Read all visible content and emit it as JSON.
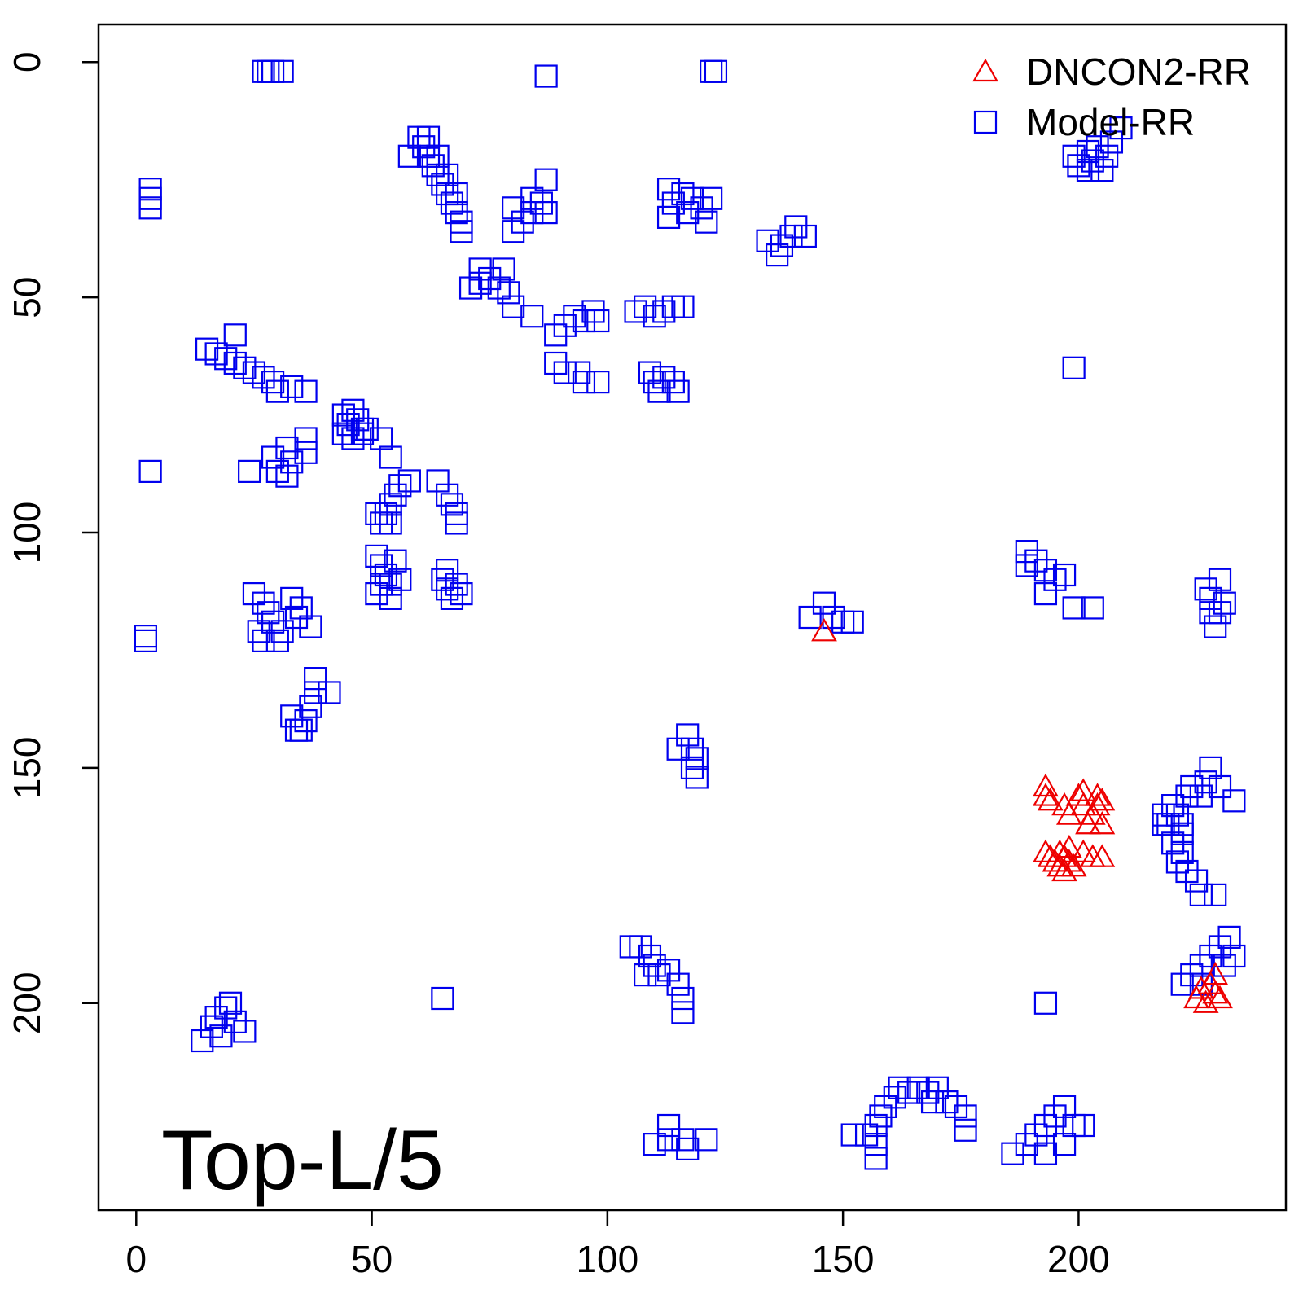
{
  "chart_data": {
    "type": "scatter",
    "title": "",
    "xlabel": "",
    "ylabel": "",
    "xlim": [
      -8,
      244
    ],
    "ylim": [
      -8,
      244
    ],
    "y_inverted": true,
    "x_ticks": [
      "0",
      "50",
      "100",
      "150",
      "200"
    ],
    "y_ticks": [
      "0",
      "50",
      "100",
      "150",
      "200"
    ],
    "grid": false,
    "legend_position": "top-right",
    "annotation": "Top-L/5",
    "colors": {
      "DNCON2-RR": "#ee0000",
      "Model-RR": "#0000ee"
    },
    "series": [
      {
        "name": "DNCON2-RR",
        "marker": "triangle",
        "points": [
          [
            146,
            121
          ],
          [
            193,
            154
          ],
          [
            193,
            156
          ],
          [
            194,
            157
          ],
          [
            197,
            158
          ],
          [
            198,
            160
          ],
          [
            200,
            156
          ],
          [
            201,
            155
          ],
          [
            201,
            158
          ],
          [
            202,
            162
          ],
          [
            203,
            160
          ],
          [
            204,
            156
          ],
          [
            204,
            158
          ],
          [
            205,
            157
          ],
          [
            205,
            162
          ],
          [
            193,
            168
          ],
          [
            194,
            169
          ],
          [
            195,
            170
          ],
          [
            196,
            168
          ],
          [
            196,
            171
          ],
          [
            197,
            169
          ],
          [
            197,
            172
          ],
          [
            198,
            167
          ],
          [
            198,
            170
          ],
          [
            199,
            171
          ],
          [
            201,
            168
          ],
          [
            203,
            169
          ],
          [
            205,
            169
          ],
          [
            225,
            199
          ],
          [
            226,
            197
          ],
          [
            227,
            200
          ],
          [
            228,
            196
          ],
          [
            229,
            194
          ],
          [
            229,
            198
          ],
          [
            230,
            199
          ]
        ]
      },
      {
        "name": "Model-RR",
        "marker": "square",
        "points": [
          [
            3,
            27
          ],
          [
            3,
            29
          ],
          [
            3,
            31
          ],
          [
            3,
            87
          ],
          [
            2,
            122
          ],
          [
            2,
            123
          ],
          [
            27,
            2
          ],
          [
            28,
            2
          ],
          [
            29,
            2
          ],
          [
            31,
            2
          ],
          [
            87,
            3
          ],
          [
            122,
            2
          ],
          [
            123,
            2
          ],
          [
            60,
            16
          ],
          [
            61,
            18
          ],
          [
            62,
            20
          ],
          [
            63,
            22
          ],
          [
            64,
            24
          ],
          [
            65,
            26
          ],
          [
            66,
            28
          ],
          [
            67,
            30
          ],
          [
            68,
            32
          ],
          [
            69,
            34
          ],
          [
            58,
            20
          ],
          [
            62,
            16
          ],
          [
            64,
            20
          ],
          [
            66,
            24
          ],
          [
            68,
            28
          ],
          [
            69,
            36
          ],
          [
            80,
            36
          ],
          [
            82,
            34
          ],
          [
            84,
            32
          ],
          [
            86,
            30
          ],
          [
            87,
            25
          ],
          [
            87,
            32
          ],
          [
            80,
            31
          ],
          [
            84,
            29
          ],
          [
            113,
            27
          ],
          [
            114,
            30
          ],
          [
            116,
            28
          ],
          [
            118,
            29
          ],
          [
            120,
            31
          ],
          [
            122,
            29
          ],
          [
            113,
            33
          ],
          [
            117,
            32
          ],
          [
            121,
            34
          ],
          [
            134,
            38
          ],
          [
            136,
            41
          ],
          [
            137,
            39
          ],
          [
            139,
            37
          ],
          [
            140,
            35
          ],
          [
            142,
            37
          ],
          [
            71,
            48
          ],
          [
            73,
            47
          ],
          [
            75,
            46
          ],
          [
            77,
            48
          ],
          [
            79,
            49
          ],
          [
            80,
            52
          ],
          [
            84,
            54
          ],
          [
            73,
            44
          ],
          [
            78,
            44
          ],
          [
            89,
            58
          ],
          [
            91,
            56
          ],
          [
            93,
            54
          ],
          [
            95,
            55
          ],
          [
            97,
            53
          ],
          [
            98,
            55
          ],
          [
            106,
            53
          ],
          [
            108,
            52
          ],
          [
            110,
            54
          ],
          [
            112,
            53
          ],
          [
            114,
            52
          ],
          [
            116,
            52
          ],
          [
            89,
            64
          ],
          [
            91,
            66
          ],
          [
            94,
            66
          ],
          [
            95,
            68
          ],
          [
            98,
            68
          ],
          [
            109,
            66
          ],
          [
            110,
            68
          ],
          [
            112,
            67
          ],
          [
            114,
            68
          ],
          [
            115,
            70
          ],
          [
            111,
            70
          ],
          [
            15,
            61
          ],
          [
            17,
            62
          ],
          [
            19,
            63
          ],
          [
            21,
            64
          ],
          [
            21,
            58
          ],
          [
            23,
            65
          ],
          [
            25,
            66
          ],
          [
            27,
            67
          ],
          [
            29,
            68
          ],
          [
            30,
            70
          ],
          [
            33,
            69
          ],
          [
            36,
            70
          ],
          [
            44,
            75
          ],
          [
            45,
            77
          ],
          [
            46,
            74
          ],
          [
            47,
            76
          ],
          [
            48,
            78
          ],
          [
            46,
            80
          ],
          [
            44,
            79
          ],
          [
            48,
            79
          ],
          [
            49,
            78
          ],
          [
            52,
            80
          ],
          [
            54,
            84
          ],
          [
            24,
            87
          ],
          [
            29,
            84
          ],
          [
            30,
            87
          ],
          [
            32,
            82
          ],
          [
            33,
            85
          ],
          [
            36,
            83
          ],
          [
            36,
            80
          ],
          [
            32,
            88
          ],
          [
            51,
            96
          ],
          [
            52,
            98
          ],
          [
            53,
            96
          ],
          [
            54,
            94
          ],
          [
            55,
            92
          ],
          [
            56,
            90
          ],
          [
            58,
            89
          ],
          [
            54,
            98
          ],
          [
            64,
            89
          ],
          [
            66,
            92
          ],
          [
            68,
            96
          ],
          [
            68,
            98
          ],
          [
            67,
            94
          ],
          [
            51,
            105
          ],
          [
            52,
            107
          ],
          [
            53,
            109
          ],
          [
            54,
            111
          ],
          [
            51,
            113
          ],
          [
            55,
            106
          ],
          [
            56,
            110
          ],
          [
            52,
            111
          ],
          [
            54,
            114
          ],
          [
            65,
            110
          ],
          [
            66,
            112
          ],
          [
            67,
            114
          ],
          [
            68,
            111
          ],
          [
            69,
            113
          ],
          [
            66,
            108
          ],
          [
            25,
            113
          ],
          [
            27,
            115
          ],
          [
            28,
            117
          ],
          [
            29,
            119
          ],
          [
            31,
            121
          ],
          [
            33,
            114
          ],
          [
            35,
            116
          ],
          [
            37,
            120
          ],
          [
            26,
            121
          ],
          [
            30,
            123
          ],
          [
            34,
            118
          ],
          [
            27,
            123
          ],
          [
            33,
            139
          ],
          [
            34,
            142
          ],
          [
            36,
            140
          ],
          [
            37,
            137
          ],
          [
            38,
            134
          ],
          [
            38,
            131
          ],
          [
            41,
            134
          ],
          [
            35,
            142
          ],
          [
            146,
            115
          ],
          [
            148,
            118
          ],
          [
            150,
            119
          ],
          [
            143,
            118
          ],
          [
            152,
            119
          ],
          [
            189,
            104
          ],
          [
            189,
            107
          ],
          [
            191,
            106
          ],
          [
            193,
            108
          ],
          [
            195,
            110
          ],
          [
            197,
            109
          ],
          [
            193,
            113
          ],
          [
            199,
            116
          ],
          [
            203,
            116
          ],
          [
            227,
            112
          ],
          [
            228,
            114
          ],
          [
            230,
            110
          ],
          [
            230,
            117
          ],
          [
            231,
            115
          ],
          [
            228,
            117
          ],
          [
            229,
            120
          ],
          [
            199,
            65
          ],
          [
            199,
            20
          ],
          [
            200,
            22
          ],
          [
            202,
            19
          ],
          [
            203,
            21
          ],
          [
            204,
            18
          ],
          [
            205,
            23
          ],
          [
            206,
            20
          ],
          [
            207,
            17
          ],
          [
            209,
            14
          ],
          [
            202,
            23
          ],
          [
            117,
            143
          ],
          [
            118,
            146
          ],
          [
            118,
            150
          ],
          [
            119,
            148
          ],
          [
            115,
            146
          ],
          [
            119,
            152
          ],
          [
            193,
            200
          ],
          [
            107,
            188
          ],
          [
            109,
            190
          ],
          [
            110,
            192
          ],
          [
            111,
            194
          ],
          [
            113,
            193
          ],
          [
            115,
            196
          ],
          [
            116,
            199
          ],
          [
            116,
            202
          ],
          [
            105,
            188
          ],
          [
            108,
            194
          ],
          [
            65,
            199
          ],
          [
            14,
            208
          ],
          [
            16,
            205
          ],
          [
            17,
            203
          ],
          [
            19,
            201
          ],
          [
            21,
            204
          ],
          [
            23,
            206
          ],
          [
            20,
            200
          ],
          [
            18,
            207
          ],
          [
            110,
            230
          ],
          [
            113,
            229
          ],
          [
            116,
            229
          ],
          [
            117,
            231
          ],
          [
            121,
            229
          ],
          [
            113,
            226
          ],
          [
            155,
            228
          ],
          [
            157,
            226
          ],
          [
            158,
            224
          ],
          [
            159,
            222
          ],
          [
            161,
            220
          ],
          [
            162,
            218
          ],
          [
            164,
            219
          ],
          [
            166,
            218
          ],
          [
            168,
            219
          ],
          [
            170,
            218
          ],
          [
            172,
            221
          ],
          [
            174,
            222
          ],
          [
            176,
            224
          ],
          [
            176,
            227
          ],
          [
            152,
            228
          ],
          [
            157,
            230
          ],
          [
            157,
            233
          ],
          [
            169,
            221
          ],
          [
            186,
            232
          ],
          [
            189,
            230
          ],
          [
            191,
            228
          ],
          [
            193,
            226
          ],
          [
            195,
            224
          ],
          [
            197,
            222
          ],
          [
            199,
            226
          ],
          [
            201,
            226
          ],
          [
            193,
            232
          ],
          [
            197,
            230
          ]
        ],
        "extra_points": [
          [
            218,
            160
          ],
          [
            219,
            162
          ],
          [
            220,
            158
          ],
          [
            221,
            160
          ],
          [
            222,
            164
          ],
          [
            223,
            156
          ],
          [
            224,
            154
          ],
          [
            226,
            156
          ],
          [
            227,
            153
          ],
          [
            228,
            150
          ],
          [
            230,
            154
          ],
          [
            233,
            157
          ],
          [
            220,
            166
          ],
          [
            222,
            168
          ],
          [
            221,
            170
          ],
          [
            223,
            172
          ],
          [
            225,
            174
          ],
          [
            226,
            177
          ],
          [
            229,
            177
          ],
          [
            218,
            162
          ],
          [
            222,
            162
          ],
          [
            226,
            192
          ],
          [
            228,
            190
          ],
          [
            230,
            188
          ],
          [
            231,
            192
          ],
          [
            232,
            186
          ],
          [
            233,
            190
          ],
          [
            222,
            196
          ],
          [
            224,
            194
          ],
          [
            226,
            196
          ]
        ]
      }
    ]
  }
}
